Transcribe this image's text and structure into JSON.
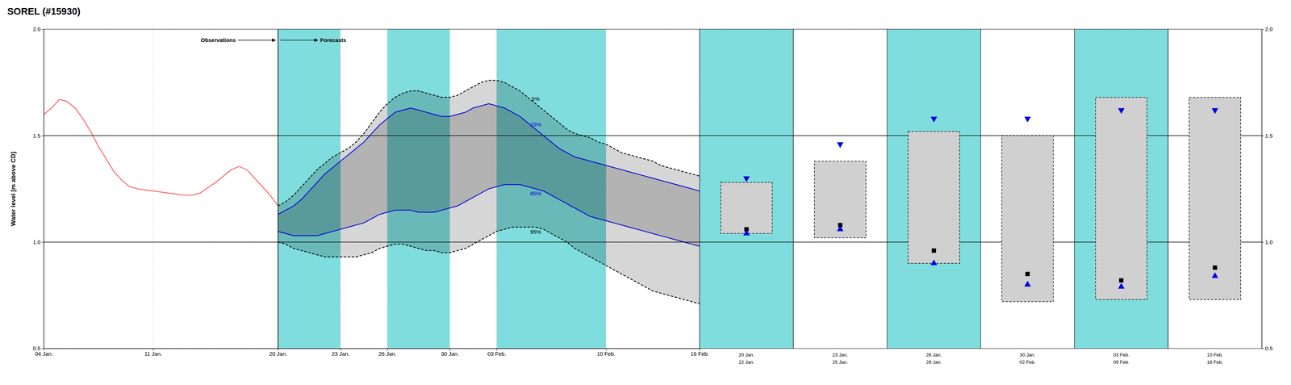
{
  "chart_data": [
    {
      "type": "fan",
      "title": "SOREL (#15930)",
      "y_label": "Water level [m above CD]",
      "xlim": [
        4,
        46
      ],
      "ylim": [
        0.5,
        2.0
      ],
      "xticks": [
        {
          "value": 4,
          "label": "04 Jan."
        },
        {
          "value": 11,
          "label": "11 Jan."
        },
        {
          "value": 19,
          "label": "20 Jan."
        },
        {
          "value": 23,
          "label": "23 Jan."
        },
        {
          "value": 26,
          "label": "26 Jan."
        },
        {
          "value": 30,
          "label": "30 Jan."
        },
        {
          "value": 33,
          "label": "03 Feb."
        },
        {
          "value": 40,
          "label": "10 Feb."
        },
        {
          "value": 46,
          "label": "16 Feb."
        }
      ],
      "yticks": [
        0.5,
        {
          "value": 1.0,
          "label": "1.0"
        },
        1.5,
        {
          "value": 2.0,
          "label": "2.0"
        }
      ],
      "grid": true,
      "hlines": [
        1.0,
        1.5
      ],
      "vlines": [
        19
      ],
      "annotations": [
        "Observations",
        "Forecasts"
      ],
      "shading": {
        "color": "#7FDDDD",
        "spans": [
          [
            19,
            23
          ],
          [
            26,
            30
          ],
          [
            33,
            40
          ]
        ]
      },
      "series": [
        {
          "type": "line",
          "color": "#FF5555",
          "line_style": "solid",
          "x": [
            4,
            4.5,
            5,
            5.5,
            6,
            6.5,
            7,
            7.5,
            8,
            8.5,
            9,
            9.5,
            10,
            10.5,
            11,
            11.5,
            12,
            12.5,
            13,
            13.5,
            14,
            14.5,
            15,
            15.5,
            16,
            16.5,
            17,
            17.5,
            18,
            18.5,
            19.0
          ],
          "values": [
            1.6,
            1.63,
            1.67,
            1.66,
            1.63,
            1.58,
            1.52,
            1.45,
            1.39,
            1.33,
            1.29,
            1.26,
            1.25,
            1.245,
            1.24,
            1.235,
            1.23,
            1.225,
            1.22,
            1.22,
            1.23,
            1.255,
            1.28,
            1.31,
            1.34,
            1.355,
            1.34,
            1.3,
            1.26,
            1.22,
            1.17
          ]
        },
        {
          "name": "5%",
          "type": "line",
          "color": "#000000",
          "line_style": "dashed",
          "x": [
            19,
            19.5,
            20,
            20.5,
            21,
            21.5,
            22,
            22.5,
            23,
            23.5,
            24,
            24.5,
            25,
            25.5,
            26,
            26.5,
            27,
            27.5,
            28,
            28.5,
            29,
            29.5,
            30,
            30.5,
            31,
            31.5,
            32,
            32.5,
            33,
            33.5,
            34,
            34.5,
            35,
            35.5,
            36,
            36.5,
            37,
            37.5,
            38,
            38.5,
            39,
            39.5,
            40,
            40.5,
            41,
            41.5,
            42,
            42.5,
            43,
            43.5,
            44,
            44.5,
            45,
            45.5,
            46
          ],
          "values": [
            1.17,
            1.19,
            1.22,
            1.26,
            1.3,
            1.34,
            1.37,
            1.4,
            1.42,
            1.44,
            1.47,
            1.51,
            1.56,
            1.61,
            1.65,
            1.68,
            1.7,
            1.71,
            1.71,
            1.7,
            1.69,
            1.68,
            1.68,
            1.69,
            1.71,
            1.73,
            1.75,
            1.76,
            1.76,
            1.75,
            1.73,
            1.71,
            1.68,
            1.65,
            1.62,
            1.59,
            1.56,
            1.53,
            1.51,
            1.5,
            1.49,
            1.47,
            1.46,
            1.44,
            1.42,
            1.41,
            1.4,
            1.39,
            1.38,
            1.36,
            1.35,
            1.34,
            1.33,
            1.32,
            1.31
          ]
        },
        {
          "name": "15%",
          "type": "line",
          "color": "#0000DD",
          "line_style": "solid",
          "x": [
            19,
            19.5,
            20,
            20.5,
            21,
            21.5,
            22,
            22.5,
            23,
            23.5,
            24,
            24.5,
            25,
            25.5,
            26,
            26.5,
            27,
            27.5,
            28,
            28.5,
            29,
            29.5,
            30,
            30.5,
            31,
            31.5,
            32,
            32.5,
            33,
            33.5,
            34,
            34.5,
            35,
            35.5,
            36,
            36.5,
            37,
            37.5,
            38,
            38.5,
            39,
            39.5,
            40,
            40.5,
            41,
            41.5,
            42,
            42.5,
            43,
            43.5,
            44,
            44.5,
            45,
            45.5,
            46
          ],
          "values": [
            1.13,
            1.15,
            1.17,
            1.2,
            1.24,
            1.28,
            1.32,
            1.35,
            1.38,
            1.41,
            1.44,
            1.47,
            1.51,
            1.55,
            1.58,
            1.61,
            1.62,
            1.63,
            1.62,
            1.61,
            1.6,
            1.59,
            1.59,
            1.6,
            1.61,
            1.63,
            1.64,
            1.65,
            1.64,
            1.63,
            1.61,
            1.59,
            1.56,
            1.53,
            1.5,
            1.47,
            1.44,
            1.42,
            1.4,
            1.39,
            1.38,
            1.37,
            1.36,
            1.35,
            1.34,
            1.33,
            1.32,
            1.31,
            1.3,
            1.29,
            1.28,
            1.27,
            1.26,
            1.25,
            1.24
          ]
        },
        {
          "name": "85%",
          "type": "line",
          "color": "#0000DD",
          "line_style": "solid",
          "x": [
            19,
            19.5,
            20,
            20.5,
            21,
            21.5,
            22,
            22.5,
            23,
            23.5,
            24,
            24.5,
            25,
            25.5,
            26,
            26.5,
            27,
            27.5,
            28,
            28.5,
            29,
            29.5,
            30,
            30.5,
            31,
            31.5,
            32,
            32.5,
            33,
            33.5,
            34,
            34.5,
            35,
            35.5,
            36,
            36.5,
            37,
            37.5,
            38,
            38.5,
            39,
            39.5,
            40,
            40.5,
            41,
            41.5,
            42,
            42.5,
            43,
            43.5,
            44,
            44.5,
            45,
            45.5,
            46
          ],
          "values": [
            1.05,
            1.04,
            1.03,
            1.03,
            1.03,
            1.03,
            1.04,
            1.05,
            1.06,
            1.07,
            1.08,
            1.09,
            1.11,
            1.13,
            1.14,
            1.15,
            1.15,
            1.15,
            1.14,
            1.14,
            1.14,
            1.15,
            1.16,
            1.17,
            1.19,
            1.21,
            1.23,
            1.25,
            1.26,
            1.27,
            1.27,
            1.27,
            1.26,
            1.25,
            1.24,
            1.22,
            1.2,
            1.18,
            1.16,
            1.14,
            1.12,
            1.11,
            1.1,
            1.09,
            1.08,
            1.07,
            1.06,
            1.05,
            1.04,
            1.03,
            1.02,
            1.01,
            1.0,
            0.99,
            0.98
          ]
        },
        {
          "name": "95%",
          "type": "line",
          "color": "#000000",
          "line_style": "dashed",
          "x": [
            19,
            19.5,
            20,
            20.5,
            21,
            21.5,
            22,
            22.5,
            23,
            23.5,
            24,
            24.5,
            25,
            25.5,
            26,
            26.5,
            27,
            27.5,
            28,
            28.5,
            29,
            29.5,
            30,
            30.5,
            31,
            31.5,
            32,
            32.5,
            33,
            33.5,
            34,
            34.5,
            35,
            35.5,
            36,
            36.5,
            37,
            37.5,
            38,
            38.5,
            39,
            39.5,
            40,
            40.5,
            41,
            41.5,
            42,
            42.5,
            43,
            43.5,
            44,
            44.5,
            45,
            45.5,
            46
          ],
          "values": [
            1.0,
            0.99,
            0.97,
            0.96,
            0.95,
            0.94,
            0.93,
            0.93,
            0.93,
            0.93,
            0.93,
            0.94,
            0.95,
            0.97,
            0.98,
            0.99,
            0.99,
            0.98,
            0.97,
            0.96,
            0.96,
            0.95,
            0.95,
            0.96,
            0.97,
            0.99,
            1.01,
            1.03,
            1.05,
            1.06,
            1.07,
            1.07,
            1.07,
            1.07,
            1.06,
            1.04,
            1.02,
            1.0,
            0.97,
            0.95,
            0.93,
            0.91,
            0.89,
            0.87,
            0.85,
            0.83,
            0.81,
            0.79,
            0.77,
            0.76,
            0.75,
            0.74,
            0.73,
            0.72,
            0.71
          ]
        }
      ]
    },
    {
      "type": "box",
      "categories": [
        [
          "20 Jan.",
          "22 Jan."
        ],
        [
          "23 Jan.",
          "25 Jan."
        ],
        [
          "26 Jan.",
          "29 Jan."
        ],
        [
          "30 Jan.",
          "02 Feb."
        ],
        [
          "03 Feb.",
          "09 Feb."
        ],
        [
          "10 Feb.",
          "16 Feb."
        ]
      ],
      "ylim": [
        0.5,
        2.0
      ],
      "yticks": [
        0.5,
        {
          "value": 1.0,
          "label": "1.0"
        },
        1.5,
        {
          "value": 2.0,
          "label": "2.0"
        }
      ],
      "grid": true,
      "hlines": [
        1.0,
        1.5
      ],
      "shading": {
        "color": "#7FDDDD",
        "shaded": [
          true,
          false,
          true,
          false,
          true,
          false
        ]
      },
      "series": [
        {
          "type": "box",
          "line_style": "dashed",
          "box_low": [
            1.04,
            1.02,
            0.9,
            0.72,
            0.73,
            0.73
          ],
          "box_high": [
            1.28,
            1.38,
            1.52,
            1.5,
            1.68,
            1.68
          ],
          "whisker_low": [
            1.04,
            1.02,
            0.9,
            0.72,
            0.73,
            0.73
          ],
          "whisker_high": [
            1.28,
            1.38,
            1.52,
            1.5,
            1.68,
            1.68
          ]
        },
        {
          "type": "scatter",
          "marker": "triangle-down",
          "color": "#0000DD",
          "values": [
            1.3,
            1.46,
            1.58,
            1.58,
            1.62,
            1.62
          ]
        },
        {
          "type": "scatter",
          "marker": "square",
          "color": "#000000",
          "values": [
            1.06,
            1.08,
            0.96,
            0.85,
            0.82,
            0.88
          ]
        },
        {
          "type": "scatter",
          "marker": "triangle-up",
          "color": "#0000DD",
          "values": [
            1.04,
            1.06,
            0.9,
            0.8,
            0.79,
            0.84
          ]
        }
      ]
    }
  ]
}
